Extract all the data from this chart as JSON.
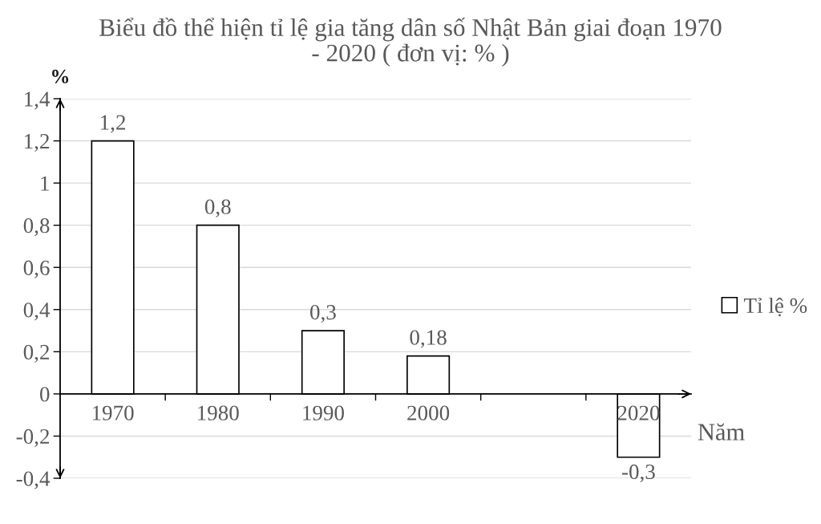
{
  "chart_data": {
    "type": "bar",
    "title": "Biểu đồ thể hiện tỉ lệ gia tăng dân số Nhật Bản giai đoạn 1970\n- 2020 ( đơn vị: % )",
    "xlabel": "Năm",
    "ylabel": "%",
    "categories": [
      "1970",
      "1980",
      "1990",
      "2000",
      null,
      "2020"
    ],
    "series": [
      {
        "name": "Tỉ lệ %",
        "color": "#ffffff",
        "values": [
          1.2,
          0.8,
          0.3,
          0.18,
          null,
          -0.3
        ],
        "value_labels": [
          "1,2",
          "0,8",
          "0,3",
          "0,18",
          null,
          "-0,3"
        ]
      }
    ],
    "ylim": [
      -0.4,
      1.4
    ],
    "yticks": [
      {
        "value": -0.4,
        "label": "-0,4"
      },
      {
        "value": -0.2,
        "label": "-0,2"
      },
      0,
      {
        "value": 0.2,
        "label": "0,2"
      },
      {
        "value": 0.4,
        "label": "0,4"
      },
      {
        "value": 0.6,
        "label": "0,6"
      },
      {
        "value": 0.8,
        "label": "0,8"
      },
      1,
      {
        "value": 1.2,
        "label": "1,2"
      },
      {
        "value": 1.4,
        "label": "1,4"
      }
    ],
    "grid": "y",
    "legend": "right"
  }
}
